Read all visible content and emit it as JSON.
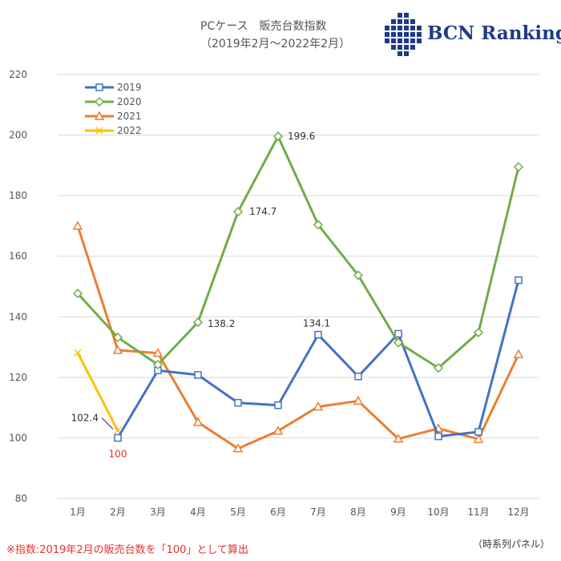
{
  "header": {
    "title_line1": "PCケース　販売台数指数",
    "title_line2": "（2019年2月～2022年2月）"
  },
  "logo": {
    "text": "BCN Ranking",
    "color": "#1f3a8a"
  },
  "footnote": "※指数:2019年2月の販売台数を「100」として算出",
  "panel_note": "（時系列パネル）",
  "chart_data": {
    "type": "line",
    "categories": [
      "1月",
      "2月",
      "3月",
      "4月",
      "5月",
      "6月",
      "7月",
      "8月",
      "9月",
      "10月",
      "11月",
      "12月"
    ],
    "ylim": [
      80,
      220
    ],
    "yticks": [
      80,
      100,
      120,
      140,
      160,
      180,
      200,
      220
    ],
    "grid": true,
    "legend_position": "top-left",
    "series": [
      {
        "name": "2019",
        "color": "#4472c4",
        "marker": "square",
        "values": [
          null,
          100,
          122.3,
          120.8,
          111.6,
          110.8,
          134.1,
          120.3,
          134.4,
          100.5,
          102.0,
          152.1
        ]
      },
      {
        "name": "2020",
        "color": "#70ad47",
        "marker": "diamond",
        "values": [
          147.7,
          133.2,
          124.2,
          138.2,
          174.7,
          199.6,
          170.4,
          153.7,
          131.5,
          123.1,
          134.8,
          189.5
        ]
      },
      {
        "name": "2021",
        "color": "#ed7d31",
        "marker": "triangle",
        "values": [
          170.0,
          129.0,
          128.0,
          105.2,
          96.5,
          102.3,
          110.3,
          112.2,
          99.7,
          103.1,
          99.6,
          127.6
        ]
      },
      {
        "name": "2022",
        "color": "#ffc000",
        "marker": "x",
        "values": [
          128.1,
          102.4,
          null,
          null,
          null,
          null,
          null,
          null,
          null,
          null,
          null,
          null
        ]
      }
    ],
    "data_labels": [
      {
        "series": "2019",
        "index": 1,
        "text": "100",
        "color": "#e8312f"
      },
      {
        "series": "2019",
        "index": 6,
        "text": "134.1",
        "color": "#333333"
      },
      {
        "series": "2020",
        "index": 3,
        "text": "138.2",
        "color": "#333333"
      },
      {
        "series": "2020",
        "index": 4,
        "text": "174.7",
        "color": "#333333"
      },
      {
        "series": "2020",
        "index": 5,
        "text": "199.6",
        "color": "#333333"
      },
      {
        "series": "2022",
        "index": 1,
        "text": "102.4",
        "color": "#333333"
      }
    ]
  }
}
